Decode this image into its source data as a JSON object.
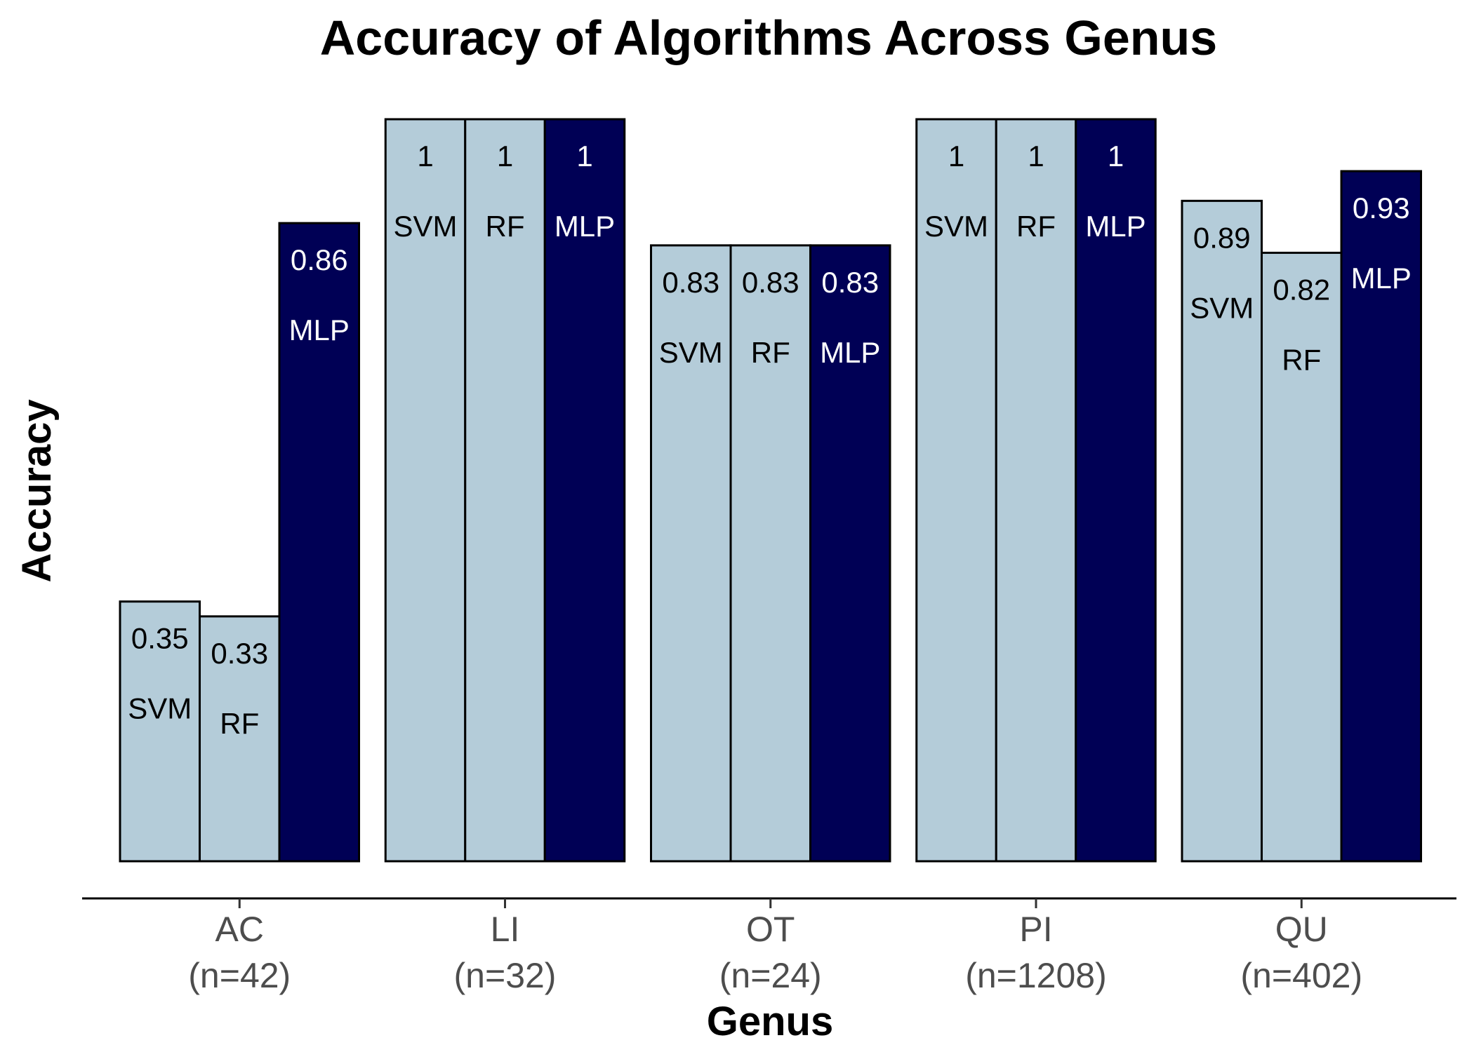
{
  "chart_data": {
    "type": "bar",
    "title": "Accuracy of Algorithms Across Genus",
    "xlabel": "Genus",
    "ylabel": "Accuracy",
    "ylim": [
      0,
      1
    ],
    "grid": false,
    "legend": "none",
    "categories": [
      "AC",
      "LI",
      "OT",
      "PI",
      "QU"
    ],
    "category_counts": [
      "(n=42)",
      "(n=32)",
      "(n=24)",
      "(n=1208)",
      "(n=402)"
    ],
    "series": [
      {
        "name": "SVM",
        "color": "#b4ccd9",
        "label_color": "#000000",
        "values": [
          0.35,
          1,
          0.83,
          1,
          0.89
        ],
        "value_labels": [
          "0.35",
          "1",
          "0.83",
          "1",
          "0.89"
        ]
      },
      {
        "name": "RF",
        "color": "#b4ccd9",
        "label_color": "#000000",
        "values": [
          0.33,
          1,
          0.83,
          1,
          0.82
        ],
        "value_labels": [
          "0.33",
          "1",
          "0.83",
          "1",
          "0.82"
        ]
      },
      {
        "name": "MLP",
        "color": "#000055",
        "label_color": "#ffffff",
        "values": [
          0.86,
          1,
          0.83,
          1,
          0.93
        ],
        "value_labels": [
          "0.86",
          "1",
          "0.83",
          "1",
          "0.93"
        ]
      }
    ]
  }
}
